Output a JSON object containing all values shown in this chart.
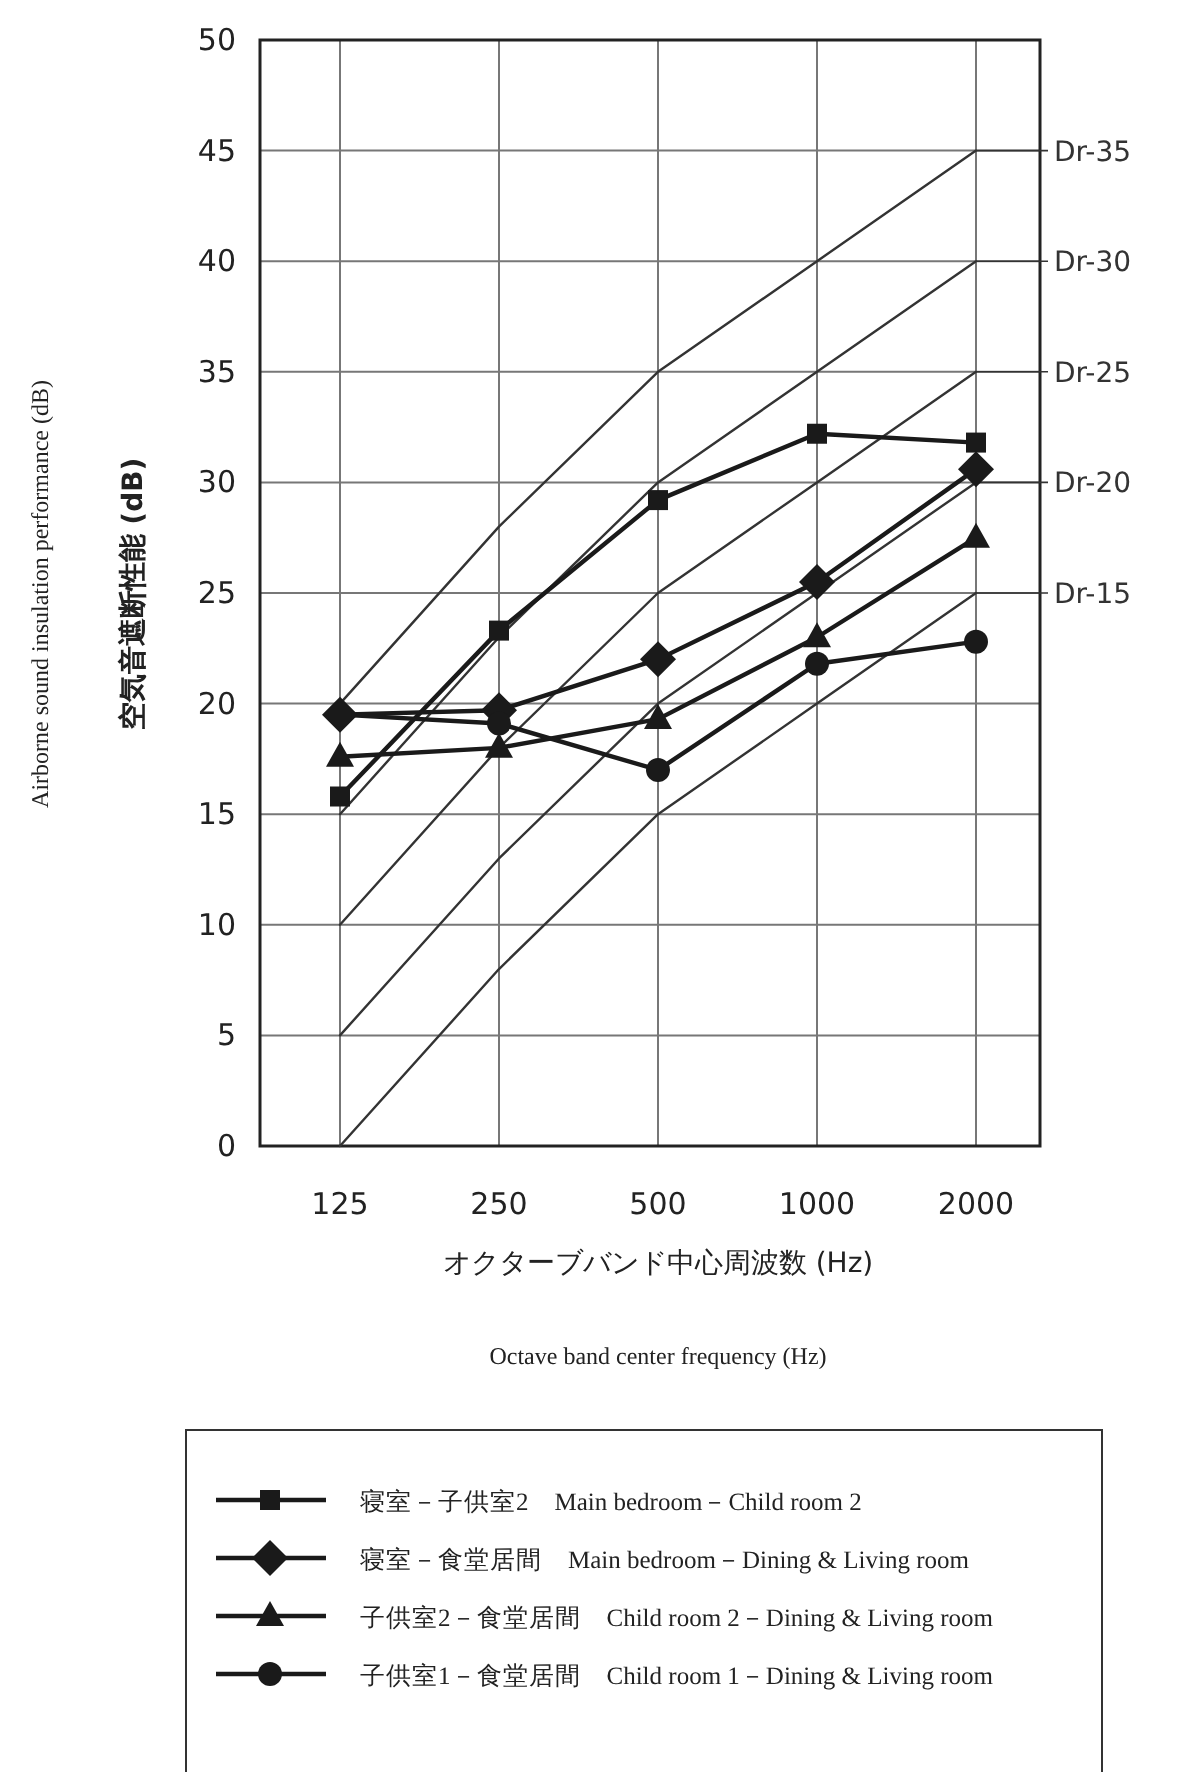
{
  "chart_data": {
    "type": "line",
    "ylabel": "空気音遮断性能 (dB)",
    "xlabel": "オクターブバンド中心周波数 (Hz)",
    "annotations": [
      "Octave band center frequency (Hz)",
      "Airborne sound insulation performance (dB)"
    ],
    "categories": [
      "125",
      "250",
      "500",
      "1000",
      "2000"
    ],
    "ylim": [
      0,
      50
    ],
    "yticks": [
      0,
      5,
      10,
      15,
      20,
      25,
      30,
      35,
      40,
      45,
      50
    ],
    "grid": true,
    "legend": "bottom",
    "line_style": "solid",
    "series": [
      {
        "name": "Dr-35",
        "color": "#333333",
        "marker": "none",
        "values": [
          20,
          28,
          35,
          40,
          45
        ]
      },
      {
        "name": "Dr-30",
        "color": "#333333",
        "marker": "none",
        "values": [
          15,
          23,
          30,
          35,
          40
        ]
      },
      {
        "name": "Dr-25",
        "color": "#333333",
        "marker": "none",
        "values": [
          10,
          18,
          25,
          30,
          35
        ]
      },
      {
        "name": "Dr-20",
        "color": "#333333",
        "marker": "none",
        "values": [
          5,
          13,
          20,
          25,
          30
        ]
      },
      {
        "name": "Dr-15",
        "color": "#333333",
        "marker": "none",
        "values": [
          0,
          8,
          15,
          20,
          25
        ]
      },
      {
        "name": "寝室－子供室2　Main bedroom－Child room 2",
        "color": "#1a1a1a",
        "marker": "square",
        "values": [
          15.8,
          23.3,
          29.2,
          32.2,
          31.8
        ]
      },
      {
        "name": "寝室－食堂居間　Main bedroom－Dining & Living room",
        "color": "#1a1a1a",
        "marker": "diamond",
        "values": [
          19.5,
          19.7,
          22.0,
          25.5,
          30.6
        ]
      },
      {
        "name": "子供室2－食堂居間　Child room 2－Dining & Living room",
        "color": "#1a1a1a",
        "marker": "triangle",
        "values": [
          17.6,
          18.0,
          19.3,
          23.0,
          27.5
        ]
      },
      {
        "name": "子供室1－食堂居間　Child room 1－Dining & Living room",
        "color": "#1a1a1a",
        "marker": "circle",
        "values": [
          19.5,
          19.1,
          17.0,
          21.8,
          22.8
        ]
      }
    ]
  }
}
